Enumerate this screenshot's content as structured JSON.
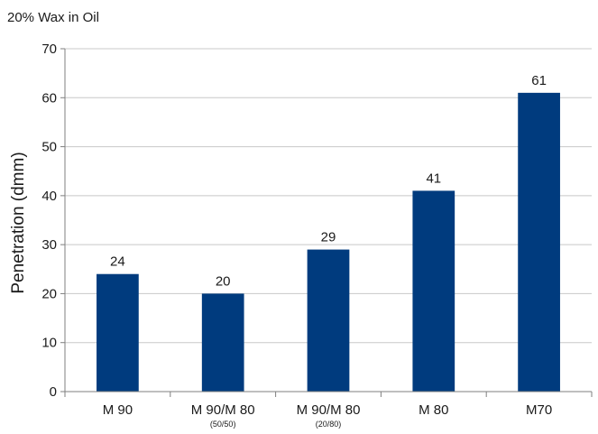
{
  "chart_data": {
    "type": "bar",
    "title": "20% Wax in Oil",
    "ylabel": "Penetration (dmm)",
    "xlabel": "",
    "ylim": [
      0,
      70
    ],
    "yticks": [
      0,
      10,
      20,
      30,
      40,
      50,
      60,
      70
    ],
    "grid": true,
    "bar_color": "#003B7E",
    "categories": [
      {
        "label": "M 90",
        "sublabel": ""
      },
      {
        "label": "M 90/M 80",
        "sublabel": "(50/50)"
      },
      {
        "label": "M 90/M 80",
        "sublabel": "(20/80)"
      },
      {
        "label": "M 80",
        "sublabel": ""
      },
      {
        "label": "M70",
        "sublabel": ""
      }
    ],
    "values": [
      24,
      20,
      29,
      41,
      61
    ],
    "data_labels": [
      "24",
      "20",
      "29",
      "41",
      "61"
    ]
  }
}
